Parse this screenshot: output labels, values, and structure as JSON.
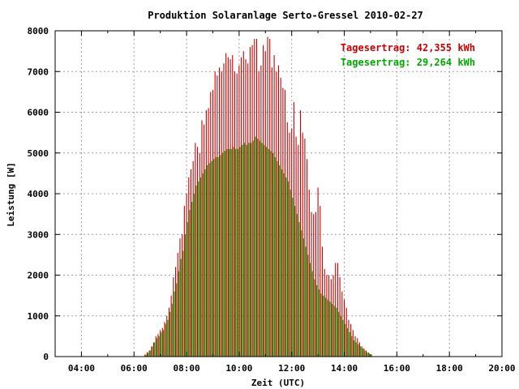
{
  "chart_data": {
    "type": "bar",
    "title": "Produktion Solaranlage Serto-Gressel 2010-02-27",
    "xlabel": "Zeit (UTC)",
    "ylabel": "Leistung [W]",
    "xlim": [
      3.0,
      20.0
    ],
    "ylim": [
      0,
      8000
    ],
    "x_ticks": [
      "04:00",
      "06:00",
      "08:00",
      "10:00",
      "12:00",
      "14:00",
      "16:00",
      "18:00",
      "20:00"
    ],
    "y_ticks": [
      "0",
      "1000",
      "2000",
      "3000",
      "4000",
      "5000",
      "6000",
      "7000",
      "8000"
    ],
    "grid": true,
    "legend_position": "top-right",
    "colors": {
      "series_1": "#cc0000",
      "series_2": "#00aa00"
    },
    "sample_interval_minutes": 5,
    "series": [
      {
        "name": "Tagesertrag: 42,355 kWh",
        "start": "06:25",
        "values": [
          50,
          100,
          150,
          250,
          350,
          500,
          550,
          650,
          700,
          850,
          1000,
          1200,
          1500,
          1950,
          2200,
          2550,
          2900,
          3000,
          3700,
          4000,
          4400,
          4600,
          4800,
          5250,
          5150,
          5000,
          5800,
          5700,
          6050,
          6100,
          6500,
          6550,
          7000,
          6900,
          7100,
          7000,
          7200,
          7450,
          7350,
          7300,
          7400,
          7000,
          6950,
          7150,
          7350,
          7500,
          7300,
          7200,
          7600,
          7650,
          7800,
          7800,
          7000,
          7150,
          7650,
          7500,
          7850,
          7800,
          7100,
          7400,
          7000,
          7150,
          6850,
          6600,
          6550,
          5750,
          5500,
          5600,
          6250,
          5400,
          5200,
          6050,
          5500,
          5350,
          4850,
          4100,
          3550,
          3500,
          3550,
          4150,
          3700,
          2700,
          2150,
          2000,
          2000,
          1900,
          2000,
          2300,
          2300,
          1950,
          1600,
          1400,
          1200,
          900,
          800,
          650,
          500,
          450,
          350,
          250,
          200,
          150,
          100,
          50
        ],
        "label": "Tagesertrag: 42,355 kWh"
      },
      {
        "name": "Tagesertrag: 29,264 kWh",
        "start": "06:25",
        "values": [
          50,
          100,
          150,
          250,
          350,
          450,
          500,
          600,
          650,
          800,
          900,
          1100,
          1300,
          1600,
          1800,
          2100,
          2400,
          2600,
          3000,
          3300,
          3600,
          3800,
          4000,
          4200,
          4300,
          4400,
          4500,
          4600,
          4700,
          4750,
          4800,
          4850,
          4900,
          4900,
          4950,
          5000,
          5050,
          5100,
          5100,
          5100,
          5150,
          5100,
          5100,
          5150,
          5200,
          5250,
          5200,
          5250,
          5250,
          5300,
          5400,
          5350,
          5300,
          5250,
          5200,
          5150,
          5100,
          5050,
          5000,
          4900,
          4800,
          4700,
          4600,
          4500,
          4400,
          4300,
          4100,
          3900,
          3700,
          3500,
          3300,
          3100,
          2900,
          2700,
          2500,
          2300,
          2100,
          1900,
          1750,
          1650,
          1550,
          1500,
          1450,
          1400,
          1350,
          1300,
          1250,
          1200,
          1100,
          1000,
          900,
          800,
          700,
          600,
          500,
          400,
          350,
          300,
          250,
          200,
          150,
          100,
          80,
          50
        ],
        "label": "Tagesertrag: 29,264 kWh"
      }
    ]
  }
}
